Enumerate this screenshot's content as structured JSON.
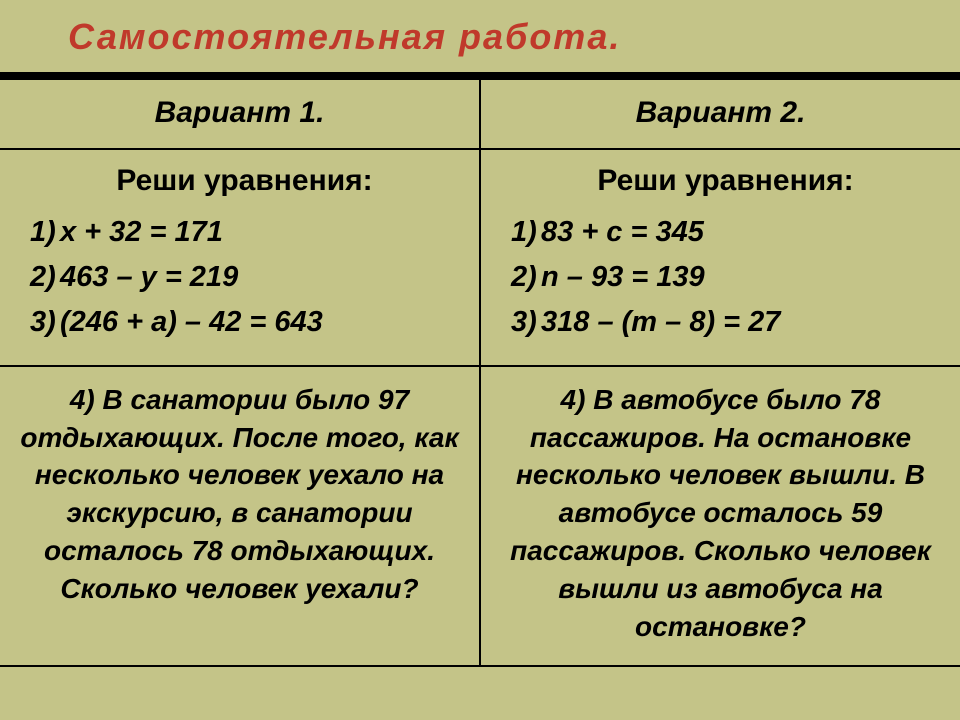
{
  "title": "Самостоятельная работа.",
  "background_color": "#c4c488",
  "title_color": "#c0392b",
  "text_color": "#000000",
  "border_color": "#000000",
  "title_fontsize": 36,
  "header_fontsize": 30,
  "body_fontsize": 29,
  "wordproblem_fontsize": 28,
  "font_style": "italic",
  "font_weight": "bold",
  "table": {
    "columns": 2,
    "rows": 3,
    "headers": {
      "v1": "Вариант 1.",
      "v2": "Вариант 2."
    },
    "equations_heading": "Реши уравнения:",
    "v1_equations": {
      "n1": "1)",
      "e1": "х + 32 = 171",
      "n2": "2)",
      "e2": "463 – у = 219",
      "n3": "3)",
      "e3": "(246 + а) – 42 = 643"
    },
    "v2_equations": {
      "n1": "1)",
      "e1": "83 + с = 345",
      "n2": "2)",
      "e2": "n – 93 = 139",
      "n3": "3)",
      "e3": "318 – (m – 8) = 27"
    },
    "v1_word_problem": "4) В санатории было 97 отдыхающих. После того, как несколько человек уехало на экскурсию, в санатории осталось 78 отдыхающих. Сколько человек уехали?",
    "v2_word_problem": "4) В автобусе было 78 пассажиров. На остановке несколько человек вышли. В автобусе осталось 59 пассажиров. Сколько человек вышли из автобуса на остановке?"
  }
}
